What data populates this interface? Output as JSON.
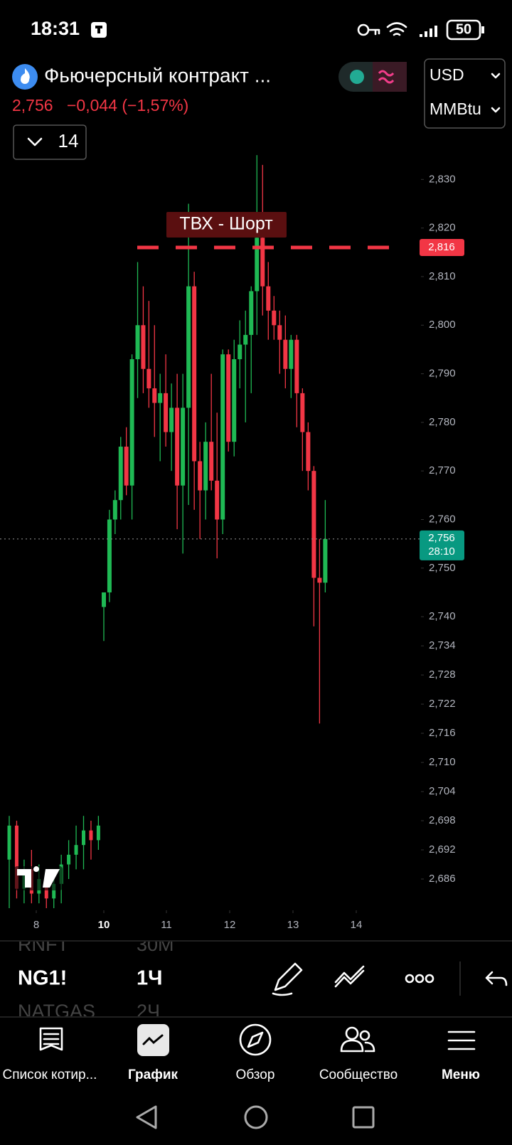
{
  "status_bar": {
    "time": "18:31",
    "battery": "50"
  },
  "header": {
    "title": "Фьючерсный контракт ...",
    "price": "2,756",
    "change": "−0,044 (−1,57%)",
    "currency": "USD",
    "unit": "MMBtu",
    "indicator_count": "14"
  },
  "chart_data": {
    "type": "candlestick",
    "x": [
      7.2,
      7.42,
      7.64,
      7.86,
      8.08,
      8.3,
      8.52,
      8.74,
      8.96,
      9.18,
      9.4,
      9.62,
      9.84,
      10.0,
      10.09,
      10.18,
      10.27,
      10.36,
      10.45,
      10.54,
      10.63,
      10.72,
      10.81,
      10.9,
      10.99,
      11.08,
      11.17,
      11.26,
      11.35,
      11.44,
      11.53,
      11.62,
      11.71,
      11.8,
      11.89,
      11.98,
      12.07,
      12.16,
      12.25,
      12.34,
      12.43,
      12.52,
      12.61,
      12.7,
      12.79,
      12.88,
      12.97,
      13.06,
      13.15,
      13.24,
      13.33,
      13.42,
      13.51
    ],
    "open": [
      2.69,
      2.697,
      2.684,
      2.688,
      2.683,
      2.686,
      2.682,
      2.685,
      2.689,
      2.691,
      2.693,
      2.696,
      2.694,
      2.742,
      2.745,
      2.76,
      2.764,
      2.775,
      2.767,
      2.793,
      2.8,
      2.791,
      2.787,
      2.784,
      2.786,
      2.778,
      2.783,
      2.767,
      2.783,
      2.808,
      2.772,
      2.766,
      2.776,
      2.768,
      2.76,
      2.794,
      2.776,
      2.793,
      2.796,
      2.798,
      2.807,
      2.818,
      2.808,
      2.803,
      2.8,
      2.797,
      2.791,
      2.797,
      2.786,
      2.778,
      2.77,
      2.748,
      2.747
    ],
    "high": [
      2.699,
      2.698,
      2.69,
      2.692,
      2.689,
      2.688,
      2.687,
      2.691,
      2.694,
      2.697,
      2.699,
      2.698,
      2.699,
      2.745,
      2.762,
      2.766,
      2.777,
      2.779,
      2.794,
      2.813,
      2.808,
      2.805,
      2.8,
      2.79,
      2.794,
      2.788,
      2.79,
      2.79,
      2.825,
      2.811,
      2.776,
      2.78,
      2.79,
      2.782,
      2.795,
      2.795,
      2.797,
      2.801,
      2.803,
      2.808,
      2.835,
      2.833,
      2.813,
      2.806,
      2.803,
      2.802,
      2.798,
      2.798,
      2.787,
      2.78,
      2.771,
      2.756,
      2.764
    ],
    "low": [
      2.68,
      2.682,
      2.681,
      2.681,
      2.681,
      2.68,
      2.68,
      2.681,
      2.686,
      2.688,
      2.688,
      2.69,
      2.692,
      2.735,
      2.743,
      2.757,
      2.76,
      2.765,
      2.76,
      2.785,
      2.786,
      2.783,
      2.777,
      2.772,
      2.775,
      2.77,
      2.758,
      2.753,
      2.763,
      2.762,
      2.756,
      2.76,
      2.766,
      2.752,
      2.757,
      2.774,
      2.773,
      2.787,
      2.78,
      2.786,
      2.798,
      2.802,
      2.797,
      2.797,
      2.79,
      2.787,
      2.785,
      2.779,
      2.77,
      2.766,
      2.738,
      2.718,
      2.745
    ],
    "close": [
      2.697,
      2.684,
      2.688,
      2.683,
      2.686,
      2.682,
      2.685,
      2.689,
      2.691,
      2.693,
      2.696,
      2.694,
      2.697,
      2.745,
      2.76,
      2.764,
      2.775,
      2.767,
      2.793,
      2.8,
      2.791,
      2.787,
      2.784,
      2.786,
      2.778,
      2.783,
      2.767,
      2.783,
      2.808,
      2.772,
      2.766,
      2.776,
      2.768,
      2.76,
      2.794,
      2.776,
      2.793,
      2.796,
      2.798,
      2.807,
      2.818,
      2.808,
      2.803,
      2.8,
      2.797,
      2.791,
      2.797,
      2.786,
      2.778,
      2.77,
      2.748,
      2.747,
      2.756
    ],
    "up_color": "#1fb954",
    "down_color": "#f23645",
    "xticks": [
      8,
      10,
      11,
      12,
      13,
      14
    ],
    "ylim": [
      2.68,
      2.84
    ],
    "yticks": [
      {
        "value": 2.83,
        "label": "2,830"
      },
      {
        "value": 2.82,
        "label": "2,820"
      },
      {
        "value": 2.81,
        "label": "2,810"
      },
      {
        "value": 2.8,
        "label": "2,800"
      },
      {
        "value": 2.79,
        "label": "2,790"
      },
      {
        "value": 2.78,
        "label": "2,780"
      },
      {
        "value": 2.77,
        "label": "2,770"
      },
      {
        "value": 2.76,
        "label": "2,760"
      },
      {
        "value": 2.75,
        "label": "2,750"
      },
      {
        "value": 2.74,
        "label": "2,740"
      },
      {
        "value": 2.734,
        "label": "2,734"
      },
      {
        "value": 2.728,
        "label": "2,728"
      },
      {
        "value": 2.722,
        "label": "2,722"
      },
      {
        "value": 2.716,
        "label": "2,716"
      },
      {
        "value": 2.71,
        "label": "2,710"
      },
      {
        "value": 2.704,
        "label": "2,704"
      },
      {
        "value": 2.698,
        "label": "2,698"
      },
      {
        "value": 2.692,
        "label": "2,692"
      },
      {
        "value": 2.686,
        "label": "2,686"
      }
    ],
    "alert_line": {
      "value": 2.816,
      "label": "2,816",
      "text": "ТВХ - Шорт",
      "color": "#f23645"
    },
    "last_price": {
      "value": 2.756,
      "label": "2,756",
      "countdown": "28:10",
      "color": "#089981"
    }
  },
  "symbols": [
    {
      "symbol": "RNFT",
      "interval": "30М"
    },
    {
      "symbol": "NG1!",
      "interval": "1Ч"
    },
    {
      "symbol": "NATGAS",
      "interval": "2Ч"
    }
  ],
  "nav": [
    "Список котир...",
    "График",
    "Обзор",
    "Сообщество",
    "Меню"
  ]
}
